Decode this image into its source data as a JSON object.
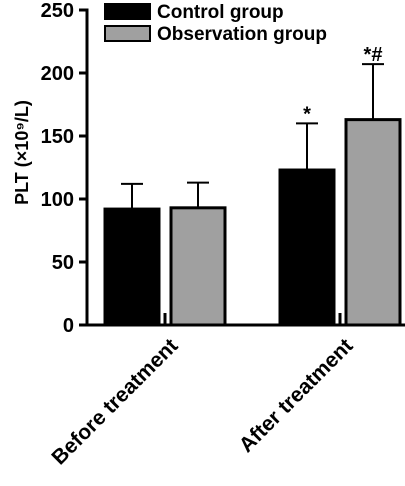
{
  "chart_data": {
    "type": "bar",
    "title": "",
    "xlabel": "",
    "ylabel": "PLT (×10⁹/L)",
    "ylim": [
      0,
      250
    ],
    "yticks": [
      "0",
      "50",
      "100",
      "150",
      "200",
      "250"
    ],
    "grid": false,
    "legend_position": "top",
    "categories": [
      "Before treatment",
      "After treatment"
    ],
    "series": [
      {
        "name": "Control group",
        "color": "#000000",
        "values": [
          92,
          123
        ],
        "errors": [
          20,
          37
        ],
        "annotations": [
          "",
          "*"
        ]
      },
      {
        "name": "Observation group",
        "color": "#a0a0a0",
        "values": [
          93,
          163
        ],
        "errors": [
          20,
          44
        ],
        "annotations": [
          "",
          "*#"
        ]
      }
    ]
  }
}
